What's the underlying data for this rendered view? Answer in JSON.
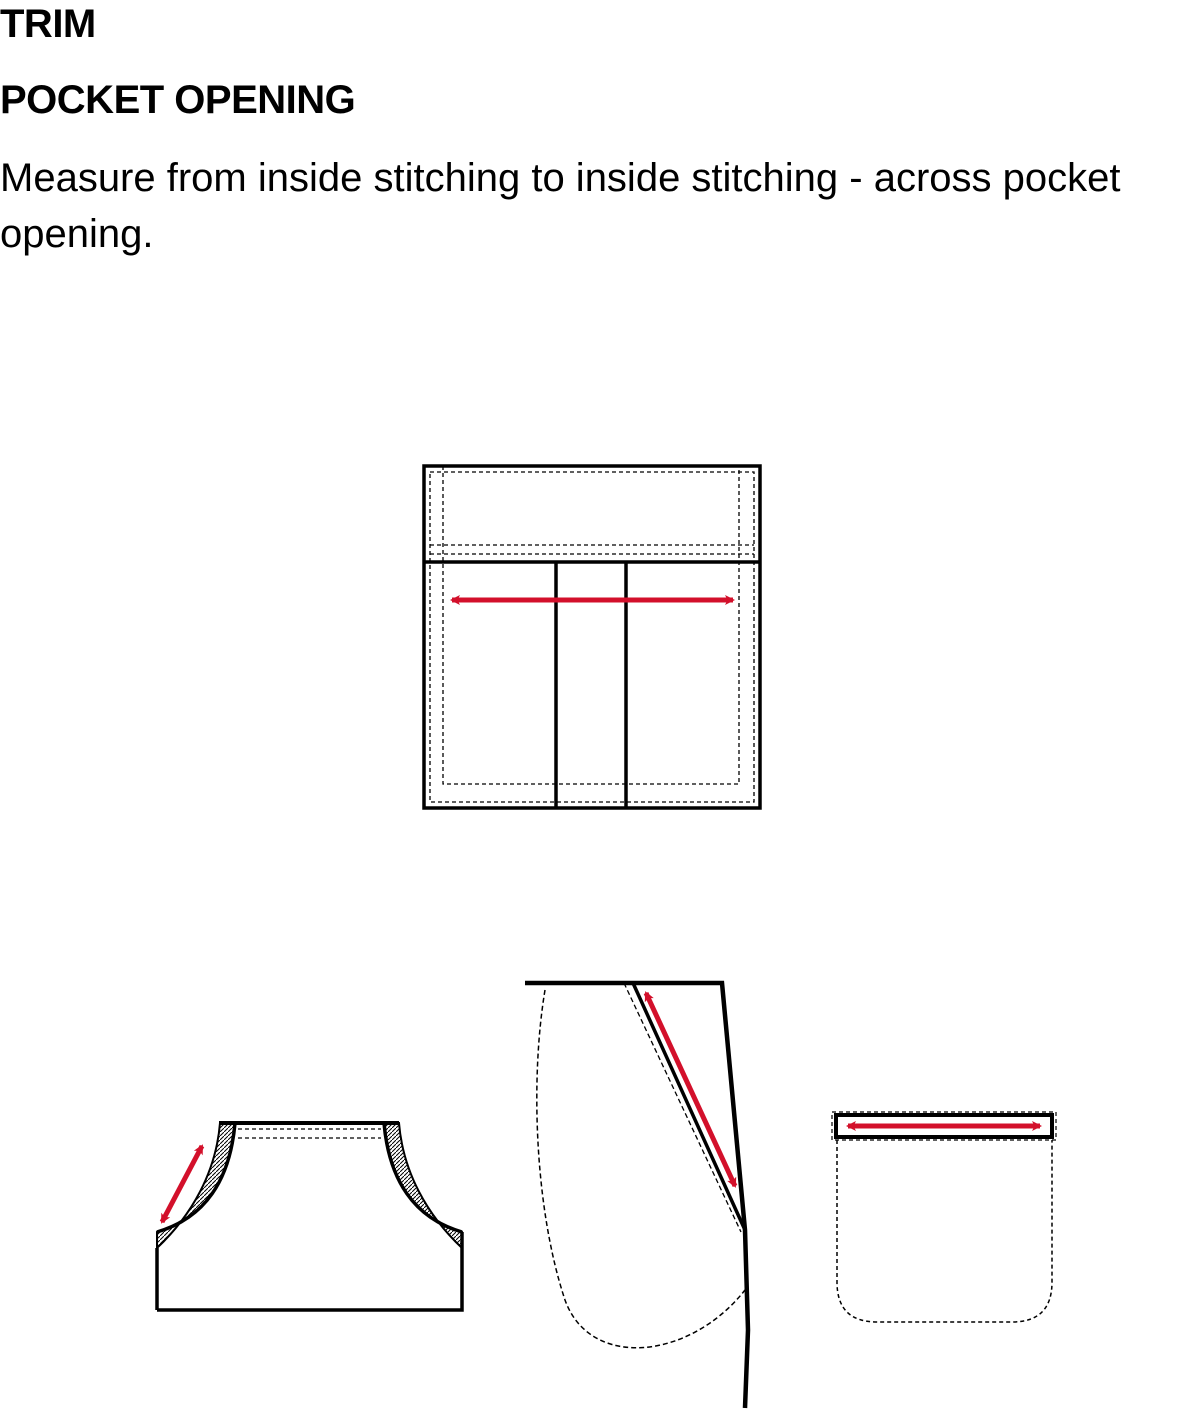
{
  "section": {
    "title": "TRIM",
    "subtitle": "POCKET OPENING",
    "instruction": "Measure from inside stitching  to inside stitching - across pocket opening."
  },
  "colors": {
    "line": "#000000",
    "measure_arrow": "#d3102b",
    "background": "#ffffff"
  },
  "figures": [
    {
      "name": "patch-pocket-with-flap"
    },
    {
      "name": "front-slant-pockets"
    },
    {
      "name": "side-seam-pocket"
    },
    {
      "name": "welt-pocket"
    }
  ]
}
